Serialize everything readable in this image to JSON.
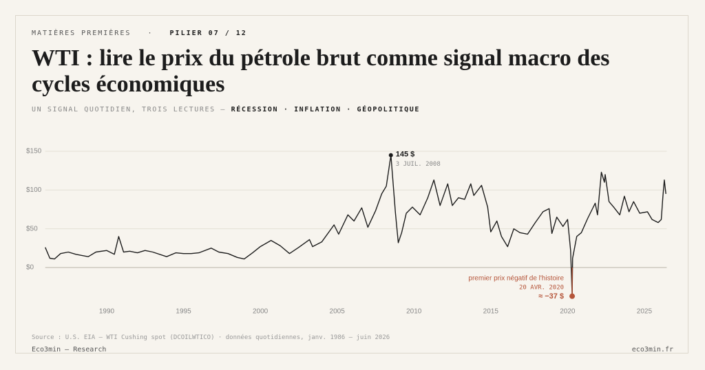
{
  "header": {
    "kicker": "MATIÈRES PREMIÈRES",
    "separator": "·",
    "pillar": "PILIER 07 / 12"
  },
  "chart_data": {
    "type": "line",
    "title": "WTI : lire le prix du pétrole brut comme signal macro des cycles économiques",
    "subtitle": "UN SIGNAL QUOTIDIEN, TROIS LECTURES —",
    "subtitle_terms": [
      "RÉCESSION",
      "·",
      "INFLATION",
      "·",
      "GÉOPOLITIQUE"
    ],
    "x": [
      1986.0,
      1986.3,
      1986.6,
      1987.0,
      1987.5,
      1988.0,
      1988.8,
      1989.3,
      1990.0,
      1990.5,
      1990.78,
      1991.1,
      1991.5,
      1992.0,
      1992.5,
      1993.0,
      1993.9,
      1994.5,
      1995.0,
      1995.5,
      1996.0,
      1996.8,
      1997.3,
      1997.9,
      1998.5,
      1998.95,
      1999.5,
      2000.0,
      2000.7,
      2001.3,
      2001.9,
      2002.5,
      2003.2,
      2003.4,
      2004.0,
      2004.8,
      2005.1,
      2005.7,
      2006.1,
      2006.6,
      2007.0,
      2007.5,
      2007.9,
      2008.2,
      2008.5,
      2008.8,
      2008.98,
      2009.2,
      2009.5,
      2009.9,
      2010.4,
      2010.9,
      2011.3,
      2011.7,
      2012.2,
      2012.5,
      2012.9,
      2013.3,
      2013.7,
      2013.9,
      2014.4,
      2014.8,
      2015.0,
      2015.4,
      2015.7,
      2016.1,
      2016.5,
      2016.9,
      2017.4,
      2017.9,
      2018.4,
      2018.8,
      2018.98,
      2019.3,
      2019.7,
      2020.0,
      2020.2,
      2020.3,
      2020.33,
      2020.6,
      2020.9,
      2021.3,
      2021.8,
      2021.95,
      2022.2,
      2022.4,
      2022.45,
      2022.7,
      2023.0,
      2023.4,
      2023.7,
      2024.0,
      2024.3,
      2024.7,
      2025.2,
      2025.5,
      2025.9,
      2026.1,
      2026.2,
      2026.3,
      2026.4
    ],
    "series": [
      {
        "name": "WTI Cushing spot",
        "color": "#1c1c1c",
        "values": [
          26,
          12,
          11,
          18,
          20,
          17,
          14,
          20,
          22,
          17,
          40,
          20,
          21,
          19,
          22,
          20,
          14,
          19,
          18,
          18,
          19,
          25,
          20,
          18,
          13,
          11,
          19,
          27,
          35,
          28,
          18,
          26,
          36,
          27,
          33,
          55,
          43,
          68,
          60,
          77,
          52,
          73,
          95,
          105,
          145,
          70,
          32,
          45,
          70,
          78,
          68,
          90,
          113,
          80,
          108,
          80,
          90,
          88,
          108,
          93,
          106,
          78,
          46,
          60,
          40,
          27,
          50,
          45,
          43,
          58,
          72,
          76,
          44,
          65,
          53,
          62,
          22,
          -37,
          12,
          40,
          45,
          63,
          83,
          68,
          123,
          110,
          120,
          85,
          78,
          68,
          92,
          72,
          85,
          70,
          72,
          62,
          58,
          62,
          90,
          113,
          95
        ]
      }
    ],
    "xlim": [
      1986,
      2026.5
    ],
    "ylim": [
      -45,
      160
    ],
    "xticks": [
      1990,
      1995,
      2000,
      2005,
      2010,
      2015,
      2020,
      2025
    ],
    "yticks": [
      {
        "value": 0,
        "label": "$0"
      },
      {
        "value": 50,
        "label": "$50"
      },
      {
        "value": 100,
        "label": "$100"
      },
      {
        "value": 150,
        "label": "$150"
      }
    ],
    "grid": true,
    "annotations": [
      {
        "x": 2008.5,
        "value": 145,
        "label": "145 $",
        "date": "3 JUIL. 2008",
        "color": "#1c1c1c"
      },
      {
        "x": 2020.3,
        "value": -37,
        "label": "≈ −37 $",
        "date": "20 AVR. 2020",
        "note": "premier prix négatif de l'histoire",
        "color": "#b5553a"
      }
    ],
    "source": "Source : U.S. EIA — WTI Cushing spot (DCOILWTICO) · données quotidiennes, janv. 1986 – juin 2026"
  },
  "footer": {
    "left": "Eco3min — Research",
    "right": "eco3min.fr"
  }
}
